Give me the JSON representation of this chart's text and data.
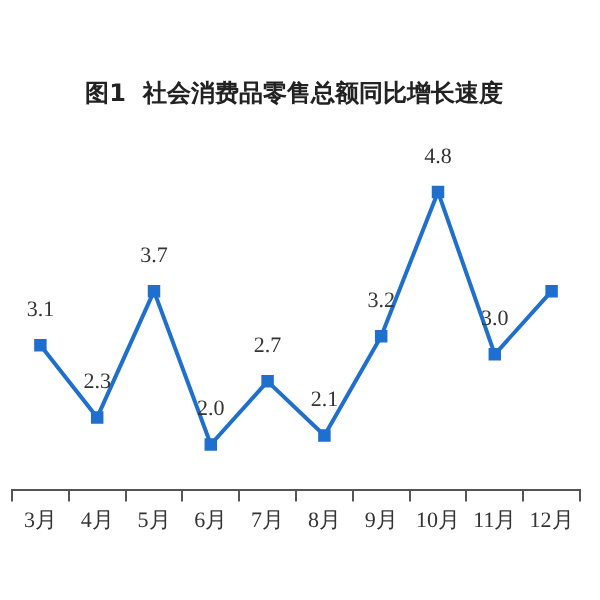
{
  "chart_data": {
    "type": "line",
    "title": "图1  社会消费品零售总额同比增长速度",
    "categories": [
      "3月",
      "4月",
      "5月",
      "6月",
      "7月",
      "8月",
      "9月",
      "10月",
      "11月",
      "12月"
    ],
    "series": [
      {
        "color": "#1f6fcf",
        "values": [
          3.1,
          2.3,
          3.7,
          2.0,
          2.7,
          2.1,
          3.2,
          4.8,
          3.0,
          3.7
        ],
        "value_labels": [
          "3.1",
          "2.3",
          "3.7",
          "2.0",
          "2.7",
          "2.1",
          "3.2",
          "4.8",
          "3.0",
          null
        ]
      }
    ],
    "marker": "square",
    "line_style": "solid",
    "grid": false,
    "legend": false
  }
}
